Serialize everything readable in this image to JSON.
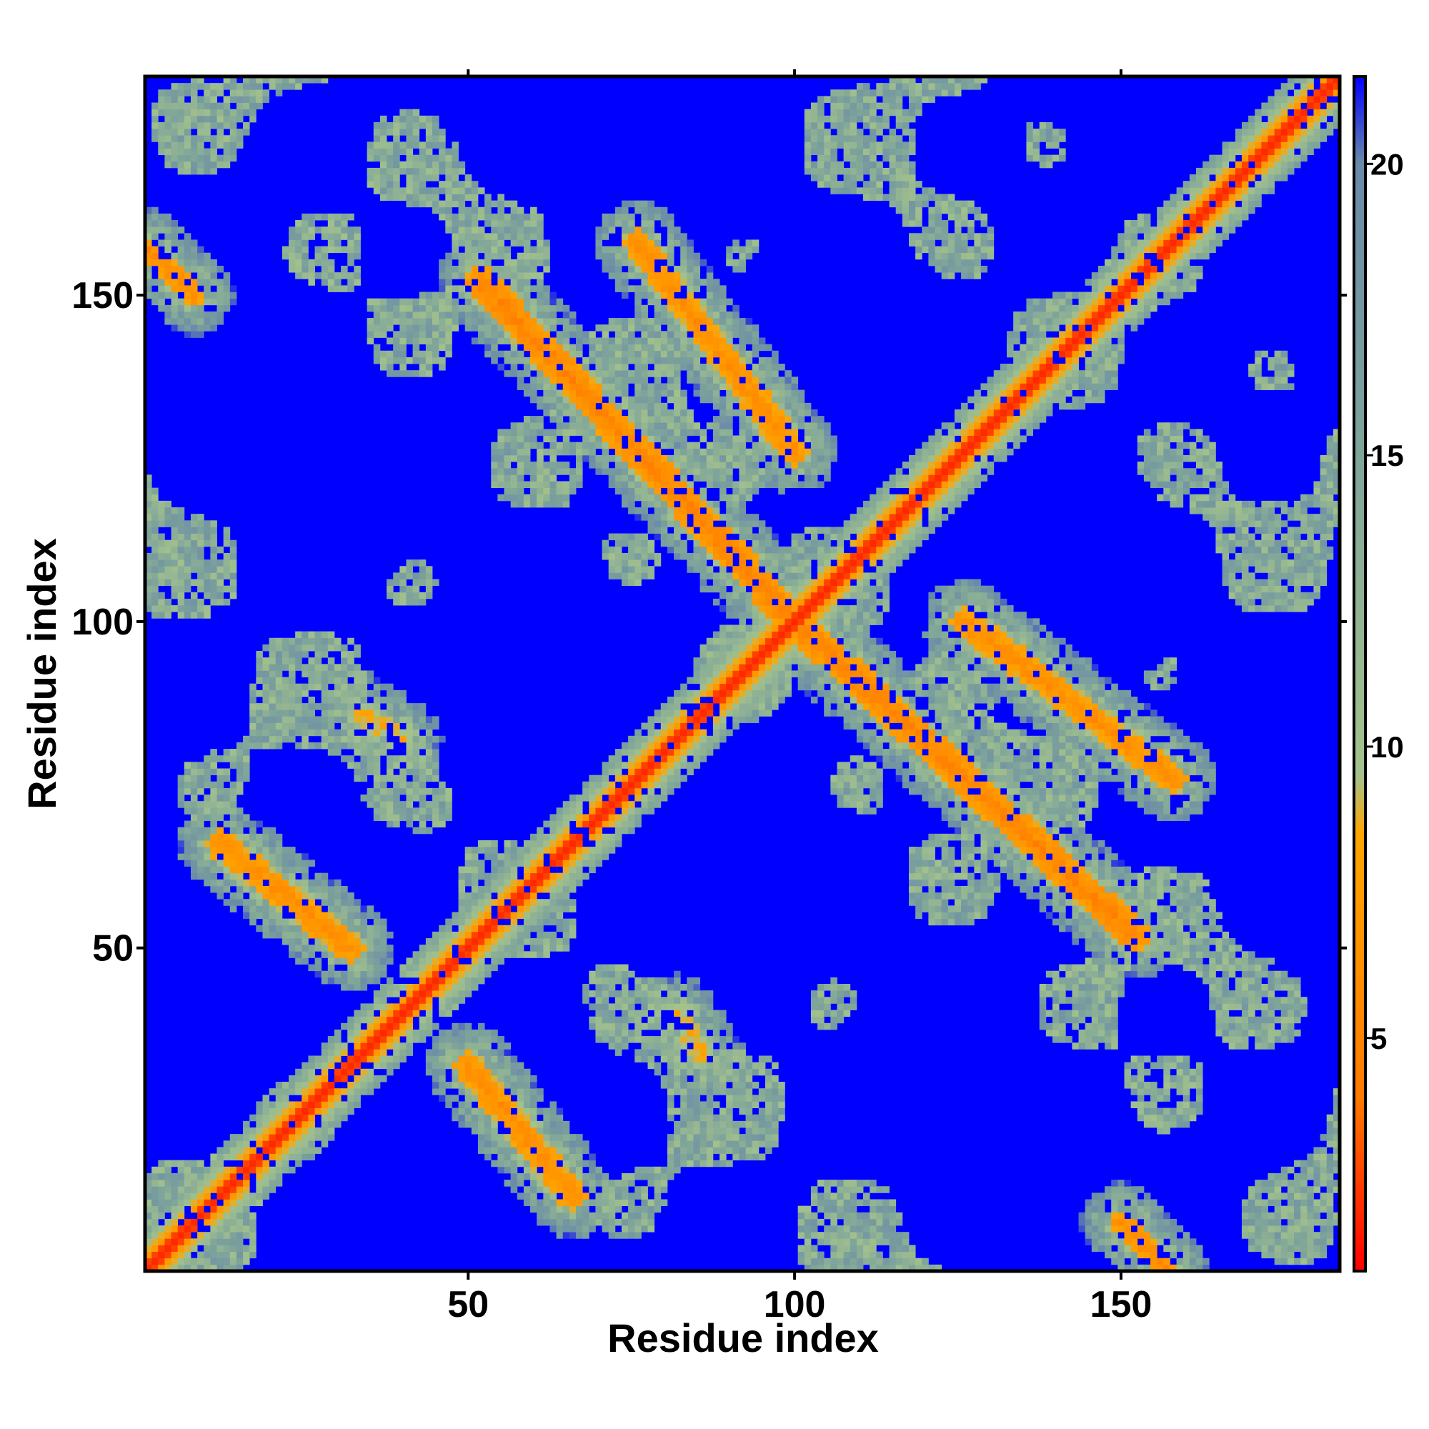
{
  "chart_data": {
    "type": "heatmap",
    "title": "",
    "xlabel": "Residue index",
    "ylabel": "Residue index",
    "xlim": [
      1,
      183
    ],
    "ylim": [
      1,
      183
    ],
    "x_ticks": [
      "50",
      "100",
      "150"
    ],
    "y_ticks": [
      "50",
      "100",
      "150"
    ],
    "colorbar": {
      "range": [
        1,
        21.5
      ],
      "ticks": [
        "5",
        "10",
        "15",
        "20"
      ],
      "colors": [
        "#ff0000",
        "#ff7a00",
        "#ffa500",
        "#a5c38c",
        "#7fa59a",
        "#6a8aa8",
        "#0000ff"
      ],
      "stops": [
        1,
        4,
        8.5,
        9.5,
        15,
        20,
        21.5
      ]
    },
    "description_of_data": "Symmetric residue-residue distance map; diagonal near 1-4, background above 21",
    "diagonal_value": 2,
    "background_value": 22,
    "contact_bands": [
      {
        "start": [
          52,
          152
        ],
        "end": [
          100,
          100
        ],
        "min": 4,
        "width": 2.4
      },
      {
        "start": [
          100,
          100
        ],
        "end": [
          152,
          48
        ],
        "min": 4,
        "width": 2.4
      },
      {
        "start": [
          76,
          158
        ],
        "end": [
          100,
          126
        ],
        "min": 5,
        "width": 2.2
      },
      {
        "start": [
          126,
          76
        ],
        "end": [
          158,
          100
        ],
        "min": 5,
        "width": 2.2
      },
      {
        "start": [
          1,
          157
        ],
        "end": [
          8,
          150
        ],
        "min": 5,
        "width": 1.8
      },
      {
        "start": [
          150,
          1
        ],
        "end": [
          157,
          8
        ],
        "min": 5,
        "width": 1.8
      },
      {
        "start": [
          12,
          66
        ],
        "end": [
          32,
          50
        ],
        "min": 5,
        "width": 2.2
      },
      {
        "start": [
          50,
          32
        ],
        "end": [
          66,
          12
        ],
        "min": 5,
        "width": 2.2
      },
      {
        "start": [
          128,
          100
        ],
        "end": [
          144,
          88
        ],
        "min": 6,
        "width": 1.8
      },
      {
        "start": [
          34,
          86
        ],
        "end": [
          40,
          82
        ],
        "min": 7,
        "width": 1.6
      }
    ]
  }
}
